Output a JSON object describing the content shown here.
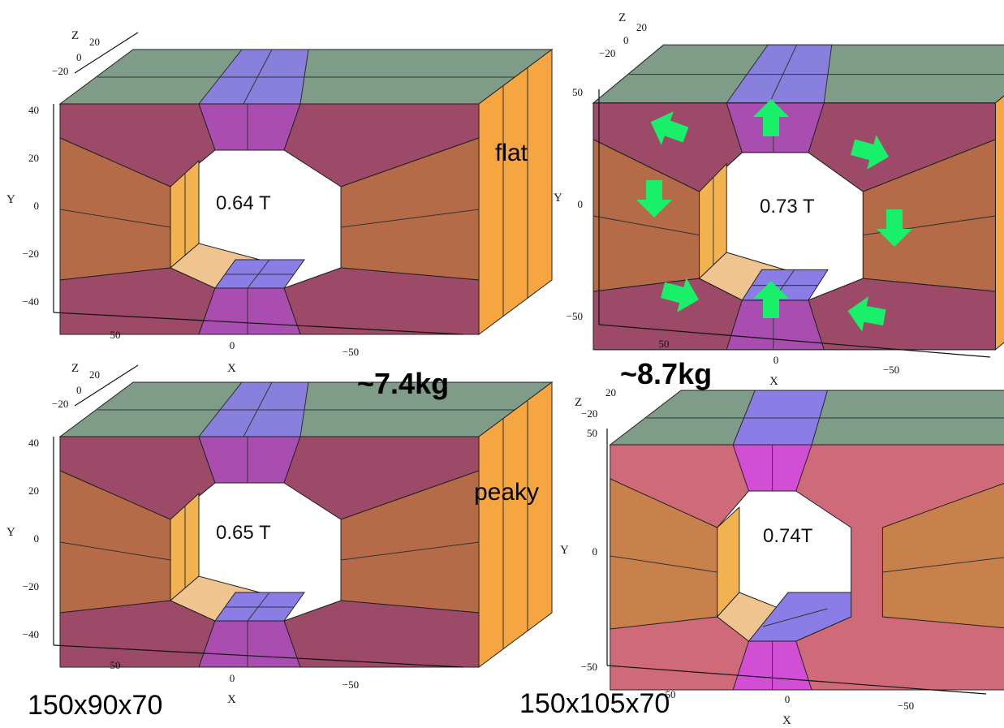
{
  "panels": [
    {
      "id": "top-left",
      "field_label": "0.64 T",
      "y_ticks": [
        "40",
        "20",
        "0",
        "−20",
        "−40"
      ],
      "x_ticks": [
        "50",
        "0",
        "−50"
      ],
      "z_ticks": [
        "20",
        "0",
        "−20"
      ],
      "axis_labels": {
        "x": "X",
        "y": "Y",
        "z": "Z"
      },
      "arrows": false
    },
    {
      "id": "top-right",
      "field_label": "0.73 T",
      "y_ticks": [
        "50",
        "0",
        "−50"
      ],
      "x_ticks": [
        "50",
        "0",
        "−50"
      ],
      "z_ticks": [
        "20",
        "0",
        "−20"
      ],
      "axis_labels": {
        "x": "X",
        "y": "Y",
        "z": "Z"
      },
      "arrows": true
    },
    {
      "id": "bottom-left",
      "field_label": "0.65 T",
      "y_ticks": [
        "40",
        "20",
        "0",
        "−20",
        "−40"
      ],
      "x_ticks": [
        "50",
        "0",
        "−50"
      ],
      "z_ticks": [
        "20",
        "0",
        "−20"
      ],
      "axis_labels": {
        "x": "X",
        "y": "Y",
        "z": "Z"
      },
      "arrows": false
    },
    {
      "id": "bottom-right",
      "field_label": "0.74T",
      "y_ticks": [
        "50",
        "0",
        "−50"
      ],
      "x_ticks": [
        "50",
        "0",
        "−50"
      ],
      "z_ticks": [
        "20",
        "−20"
      ],
      "axis_labels": {
        "x": "X",
        "y": "Y",
        "z": "Z"
      },
      "arrows": false
    }
  ],
  "labels": {
    "flat": "flat",
    "peaky": "peaky",
    "mass_left": "~7.4kg",
    "mass_right": "~8.7kg",
    "dims_left": "150x90x70",
    "dims_right": "150x105x70"
  },
  "colors": {
    "top_face": "#7f9c88",
    "top_center": "#8a7ee6",
    "side_wedge": "#9d4a68",
    "side_wedge_light": "#cf6a78",
    "inner_left": "#b56a48",
    "inner_left_light": "#c9814c",
    "pole_center": "#a94eb0",
    "pole_center_light": "#d24ed4",
    "bore_inner": "#f0c48e",
    "bore_inner_side": "#f2b24f",
    "right_face": "#f6a640",
    "arrow": "#19f06a"
  }
}
